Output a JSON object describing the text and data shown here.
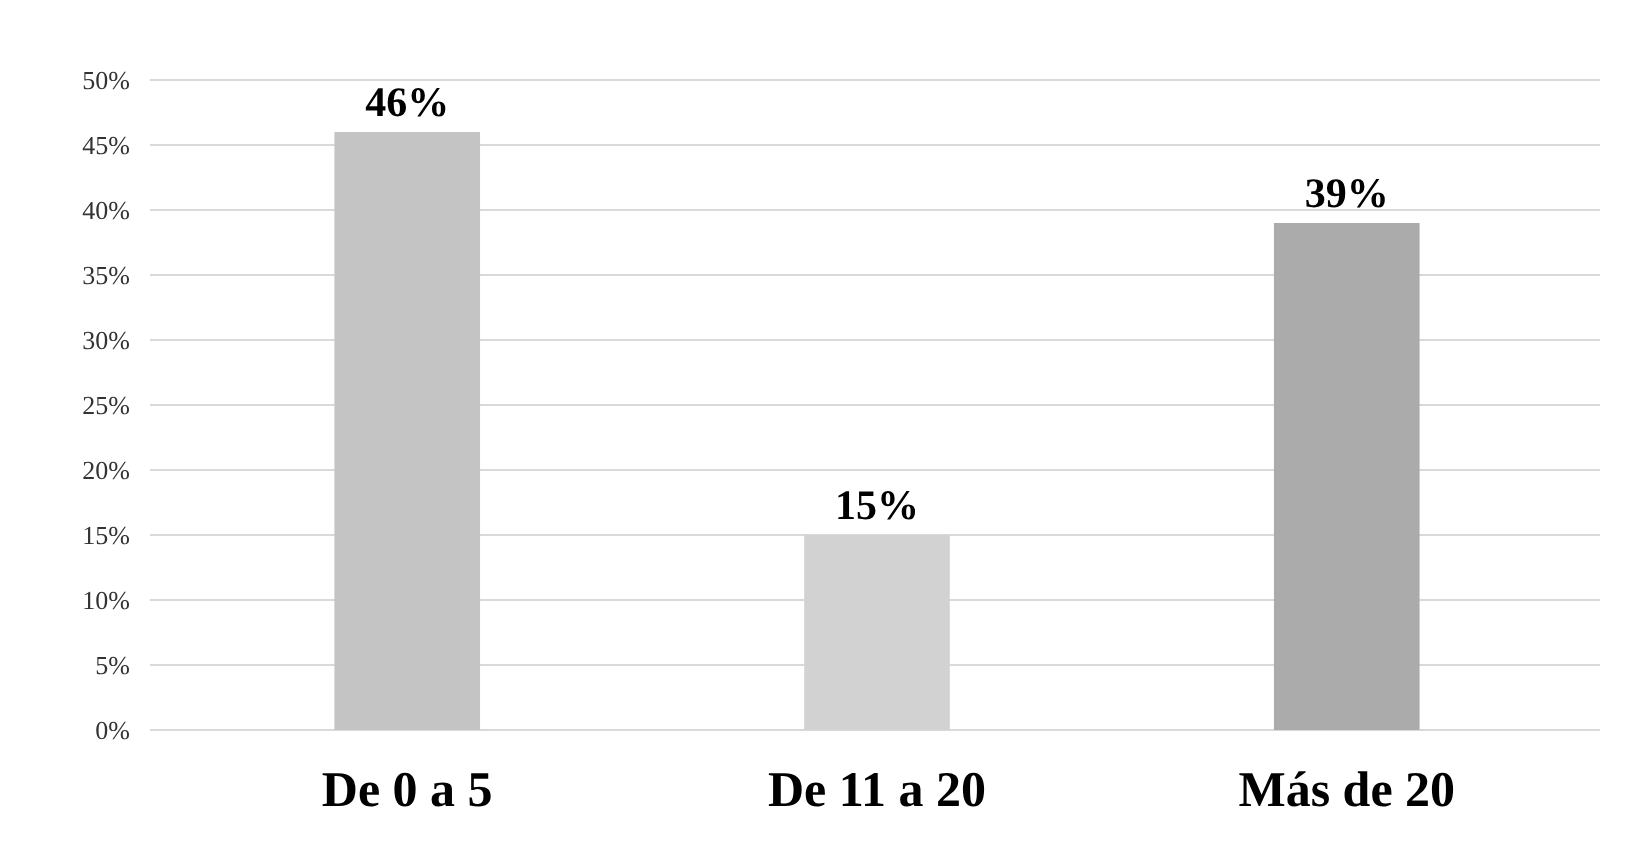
{
  "chart_data": {
    "type": "bar",
    "categories": [
      "De 0 a 5",
      "De 11 a 20",
      "Más de 20"
    ],
    "values": [
      46,
      15,
      39
    ],
    "colors": [
      "#c4c4c4",
      "#d2d2d2",
      "#ababab"
    ],
    "value_labels": [
      "46%",
      "15%",
      "39%"
    ],
    "ylim": [
      0,
      50
    ],
    "yticks": [
      {
        "value": 0,
        "label": "0%"
      },
      {
        "value": 5,
        "label": "5%"
      },
      {
        "value": 10,
        "label": "10%"
      },
      {
        "value": 15,
        "label": "15%"
      },
      {
        "value": 20,
        "label": "20%"
      },
      {
        "value": 25,
        "label": "25%"
      },
      {
        "value": 30,
        "label": "30%"
      },
      {
        "value": 35,
        "label": "35%"
      },
      {
        "value": 40,
        "label": "40%"
      },
      {
        "value": 45,
        "label": "45%"
      },
      {
        "value": 50,
        "label": "50%"
      }
    ],
    "grid": "y"
  }
}
